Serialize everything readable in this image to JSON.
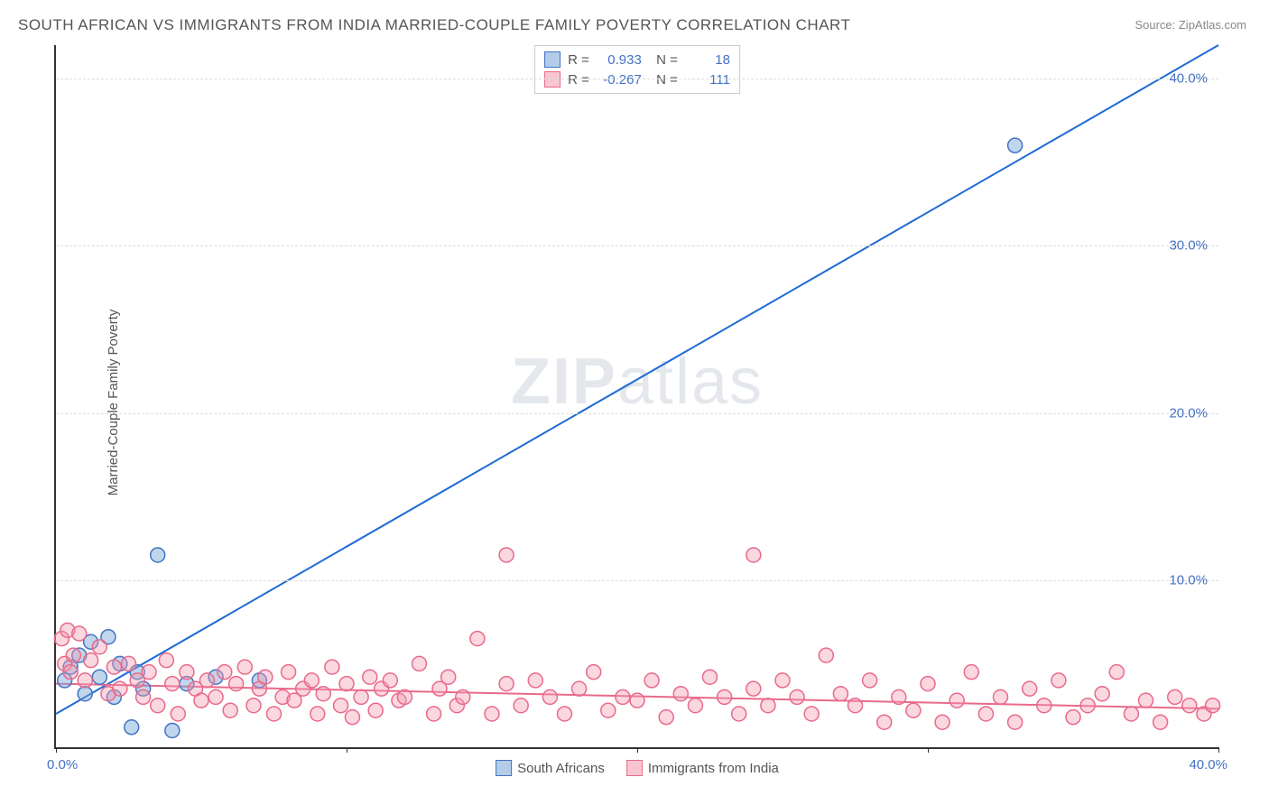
{
  "title": "SOUTH AFRICAN VS IMMIGRANTS FROM INDIA MARRIED-COUPLE FAMILY POVERTY CORRELATION CHART",
  "source": "Source: ZipAtlas.com",
  "y_axis_label": "Married-Couple Family Poverty",
  "watermark": "ZIPatlas",
  "chart": {
    "type": "scatter",
    "xlim": [
      0,
      40
    ],
    "ylim": [
      0,
      42
    ],
    "x_ticks": [
      0,
      10,
      20,
      30,
      40
    ],
    "x_tick_labels_shown": {
      "min": "0.0%",
      "max": "40.0%"
    },
    "y_ticks": [
      10,
      20,
      30,
      40
    ],
    "y_tick_labels": [
      "10.0%",
      "20.0%",
      "30.0%",
      "40.0%"
    ],
    "background_color": "#ffffff",
    "grid_color": "#dddddd",
    "axis_color": "#333333",
    "tick_label_color": "#4472c4",
    "marker_radius": 8,
    "marker_stroke_width": 1.5,
    "line_width": 2
  },
  "stats": [
    {
      "r": "0.933",
      "n": "18",
      "swatch_fill": "#b3cde8",
      "swatch_border": "#4472c4"
    },
    {
      "r": "-0.267",
      "n": "111",
      "swatch_fill": "#f7c6d0",
      "swatch_border": "#e86a8a"
    }
  ],
  "legend": [
    {
      "label": "South Africans",
      "swatch_fill": "#b3cde8",
      "swatch_border": "#4472c4"
    },
    {
      "label": "Immigrants from India",
      "swatch_fill": "#f7c6d0",
      "swatch_border": "#e86a8a"
    }
  ],
  "series": [
    {
      "name": "South Africans",
      "marker_fill": "rgba(116,163,214,0.45)",
      "marker_stroke": "#4472c4",
      "line_color": "#1f6bd6",
      "regression": {
        "x1": 0,
        "y1": 2.0,
        "x2": 40,
        "y2": 42.0
      },
      "points": [
        [
          0.3,
          4.0
        ],
        [
          0.5,
          4.8
        ],
        [
          0.8,
          5.5
        ],
        [
          1.0,
          3.2
        ],
        [
          1.2,
          6.3
        ],
        [
          1.5,
          4.2
        ],
        [
          1.8,
          6.6
        ],
        [
          2.0,
          3.0
        ],
        [
          2.2,
          5.0
        ],
        [
          2.6,
          1.2
        ],
        [
          2.8,
          4.5
        ],
        [
          3.0,
          3.5
        ],
        [
          3.5,
          11.5
        ],
        [
          4.0,
          1.0
        ],
        [
          4.5,
          3.8
        ],
        [
          5.5,
          4.2
        ],
        [
          7.0,
          4.0
        ],
        [
          33.0,
          36.0
        ]
      ]
    },
    {
      "name": "Immigrants from India",
      "marker_fill": "rgba(244,154,177,0.40)",
      "marker_stroke": "#e86a8a",
      "line_color": "#e86a8a",
      "regression": {
        "x1": 0,
        "y1": 3.8,
        "x2": 40,
        "y2": 2.3
      },
      "points": [
        [
          0.2,
          6.5
        ],
        [
          0.3,
          5.0
        ],
        [
          0.4,
          7.0
        ],
        [
          0.5,
          4.5
        ],
        [
          0.6,
          5.5
        ],
        [
          0.8,
          6.8
        ],
        [
          1.0,
          4.0
        ],
        [
          1.2,
          5.2
        ],
        [
          1.5,
          6.0
        ],
        [
          1.8,
          3.2
        ],
        [
          2.0,
          4.8
        ],
        [
          2.2,
          3.5
        ],
        [
          2.5,
          5.0
        ],
        [
          2.8,
          4.0
        ],
        [
          3.0,
          3.0
        ],
        [
          3.2,
          4.5
        ],
        [
          3.5,
          2.5
        ],
        [
          3.8,
          5.2
        ],
        [
          4.0,
          3.8
        ],
        [
          4.2,
          2.0
        ],
        [
          4.5,
          4.5
        ],
        [
          4.8,
          3.5
        ],
        [
          5.0,
          2.8
        ],
        [
          5.2,
          4.0
        ],
        [
          5.5,
          3.0
        ],
        [
          5.8,
          4.5
        ],
        [
          6.0,
          2.2
        ],
        [
          6.2,
          3.8
        ],
        [
          6.5,
          4.8
        ],
        [
          6.8,
          2.5
        ],
        [
          7.0,
          3.5
        ],
        [
          7.2,
          4.2
        ],
        [
          7.5,
          2.0
        ],
        [
          7.8,
          3.0
        ],
        [
          8.0,
          4.5
        ],
        [
          8.2,
          2.8
        ],
        [
          8.5,
          3.5
        ],
        [
          8.8,
          4.0
        ],
        [
          9.0,
          2.0
        ],
        [
          9.2,
          3.2
        ],
        [
          9.5,
          4.8
        ],
        [
          9.8,
          2.5
        ],
        [
          10.0,
          3.8
        ],
        [
          10.2,
          1.8
        ],
        [
          10.5,
          3.0
        ],
        [
          10.8,
          4.2
        ],
        [
          11.0,
          2.2
        ],
        [
          11.2,
          3.5
        ],
        [
          11.5,
          4.0
        ],
        [
          11.8,
          2.8
        ],
        [
          12.0,
          3.0
        ],
        [
          12.5,
          5.0
        ],
        [
          13.0,
          2.0
        ],
        [
          13.2,
          3.5
        ],
        [
          13.5,
          4.2
        ],
        [
          13.8,
          2.5
        ],
        [
          14.0,
          3.0
        ],
        [
          14.5,
          6.5
        ],
        [
          15.0,
          2.0
        ],
        [
          15.5,
          11.5
        ],
        [
          15.5,
          3.8
        ],
        [
          16.0,
          2.5
        ],
        [
          16.5,
          4.0
        ],
        [
          17.0,
          3.0
        ],
        [
          17.5,
          2.0
        ],
        [
          18.0,
          3.5
        ],
        [
          18.5,
          4.5
        ],
        [
          19.0,
          2.2
        ],
        [
          19.5,
          3.0
        ],
        [
          20.0,
          2.8
        ],
        [
          20.5,
          4.0
        ],
        [
          21.0,
          1.8
        ],
        [
          21.5,
          3.2
        ],
        [
          22.0,
          2.5
        ],
        [
          22.5,
          4.2
        ],
        [
          23.0,
          3.0
        ],
        [
          23.5,
          2.0
        ],
        [
          24.0,
          11.5
        ],
        [
          24.0,
          3.5
        ],
        [
          24.5,
          2.5
        ],
        [
          25.0,
          4.0
        ],
        [
          25.5,
          3.0
        ],
        [
          26.0,
          2.0
        ],
        [
          26.5,
          5.5
        ],
        [
          27.0,
          3.2
        ],
        [
          27.5,
          2.5
        ],
        [
          28.0,
          4.0
        ],
        [
          28.5,
          1.5
        ],
        [
          29.0,
          3.0
        ],
        [
          29.5,
          2.2
        ],
        [
          30.0,
          3.8
        ],
        [
          30.5,
          1.5
        ],
        [
          31.0,
          2.8
        ],
        [
          31.5,
          4.5
        ],
        [
          32.0,
          2.0
        ],
        [
          32.5,
          3.0
        ],
        [
          33.0,
          1.5
        ],
        [
          33.5,
          3.5
        ],
        [
          34.0,
          2.5
        ],
        [
          34.5,
          4.0
        ],
        [
          35.0,
          1.8
        ],
        [
          35.5,
          2.5
        ],
        [
          36.0,
          3.2
        ],
        [
          36.5,
          4.5
        ],
        [
          37.0,
          2.0
        ],
        [
          37.5,
          2.8
        ],
        [
          38.0,
          1.5
        ],
        [
          38.5,
          3.0
        ],
        [
          39.0,
          2.5
        ],
        [
          39.5,
          2.0
        ],
        [
          39.8,
          2.5
        ]
      ]
    }
  ]
}
